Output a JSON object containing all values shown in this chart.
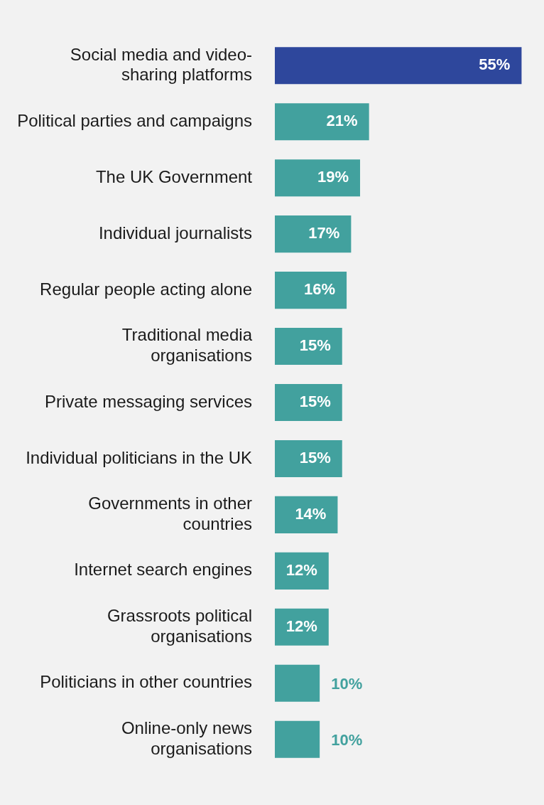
{
  "chart_data": {
    "type": "bar",
    "orientation": "horizontal",
    "legend": false,
    "value_labels": [
      "55%",
      "21%",
      "19%",
      "17%",
      "16%",
      "15%",
      "15%",
      "15%",
      "14%",
      "12%",
      "12%",
      "10%",
      "10%"
    ],
    "categories": [
      "Social media and video-\nsharing platforms",
      "Political parties and campaigns",
      "The UK Government",
      "Individual journalists",
      "Regular people acting alone",
      "Traditional media\norganisations",
      "Private messaging services",
      "Individual politicians in the UK",
      "Governments in other\ncountries",
      "Internet search engines",
      "Grassroots political\norganisations",
      "Politicians in other countries",
      "Online-only news\norganisations"
    ],
    "values": [
      55,
      21,
      19,
      17,
      16,
      15,
      15,
      15,
      14,
      12,
      12,
      10,
      10
    ],
    "colors": [
      "#2e479c",
      "#42a19e",
      "#42a19e",
      "#42a19e",
      "#42a19e",
      "#42a19e",
      "#42a19e",
      "#42a19e",
      "#42a19e",
      "#42a19e",
      "#42a19e",
      "#42a19e",
      "#42a19e"
    ]
  }
}
